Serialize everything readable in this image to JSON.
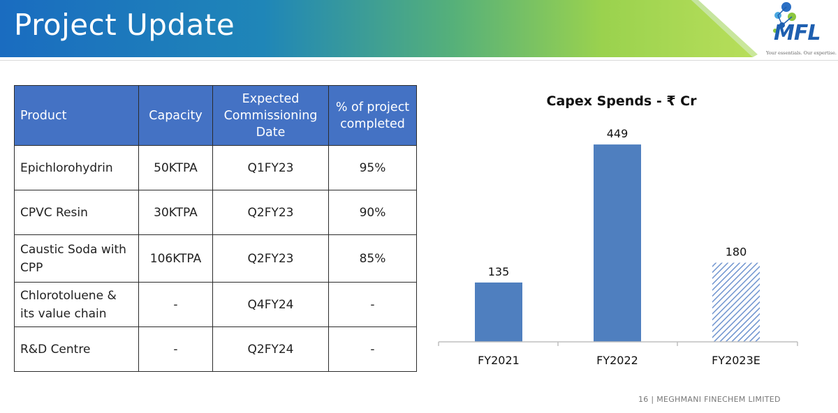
{
  "header": {
    "title": "Project Update",
    "logo_text": "MFL",
    "logo_tagline": "Your essentials. Our expertise."
  },
  "table": {
    "headers": [
      "Product",
      "Capacity",
      "Expected Commissioning Date",
      "% of project completed"
    ],
    "rows": [
      [
        "Epichlorohydrin",
        "50KTPA",
        "Q1FY23",
        "95%"
      ],
      [
        "CPVC Resin",
        "30KTPA",
        "Q2FY23",
        "90%"
      ],
      [
        "Caustic Soda with CPP",
        "106KTPA",
        "Q2FY23",
        "85%"
      ],
      [
        "Chlorotoluene & its value chain",
        "-",
        "Q4FY24",
        "-"
      ],
      [
        "R&D Centre",
        "-",
        "Q2FY24",
        "-"
      ]
    ]
  },
  "chart_data": {
    "type": "bar",
    "title": "Capex Spends - ₹ Cr",
    "categories": [
      "FY2021",
      "FY2022",
      "FY2023E"
    ],
    "values": [
      135,
      449,
      180
    ],
    "data_labels": [
      "135",
      "449",
      "180"
    ],
    "estimated_pattern": [
      false,
      false,
      true
    ],
    "colors": {
      "bar": "#4f7fbf",
      "hatch": "#8aaad8"
    },
    "xlabel": "",
    "ylabel": "",
    "ylim": [
      0,
      480
    ],
    "grid": false,
    "legend": "none"
  },
  "footer": {
    "text": "16 | MEGHMANI FINECHEM LIMITED"
  },
  "colors": {
    "banner_blue": "#1c6fbf",
    "banner_green": "#8fd04a",
    "table_header": "#4472c4"
  }
}
